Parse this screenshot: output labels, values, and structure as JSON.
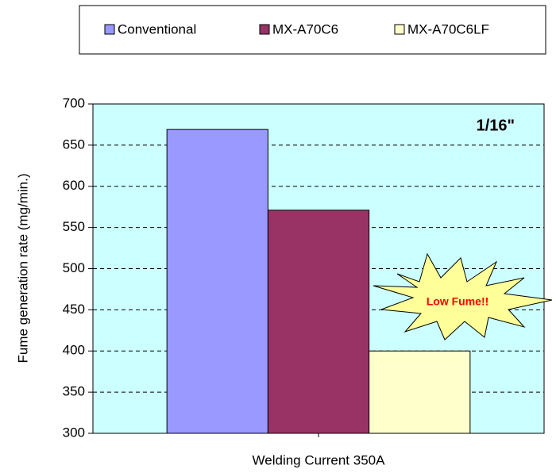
{
  "chart_data": {
    "type": "bar",
    "categories": [
      "Welding Current 350A"
    ],
    "series": [
      {
        "name": "Conventional",
        "color": "#9999ff",
        "values": [
          669
        ]
      },
      {
        "name": "MX-A70C6",
        "color": "#993366",
        "values": [
          571
        ]
      },
      {
        "name": "MX-A70C6LF",
        "color": "#ffffcc",
        "values": [
          400
        ]
      }
    ],
    "ylabel": "Fume generation rate (mg/min.)",
    "annotations": [
      "1/16\"",
      "Low Fume!!"
    ],
    "ylim": [
      300,
      700
    ],
    "yticks": [
      300,
      350,
      400,
      450,
      500,
      550,
      600,
      650,
      700
    ],
    "grid": true,
    "plot_background": "#ccffff"
  }
}
